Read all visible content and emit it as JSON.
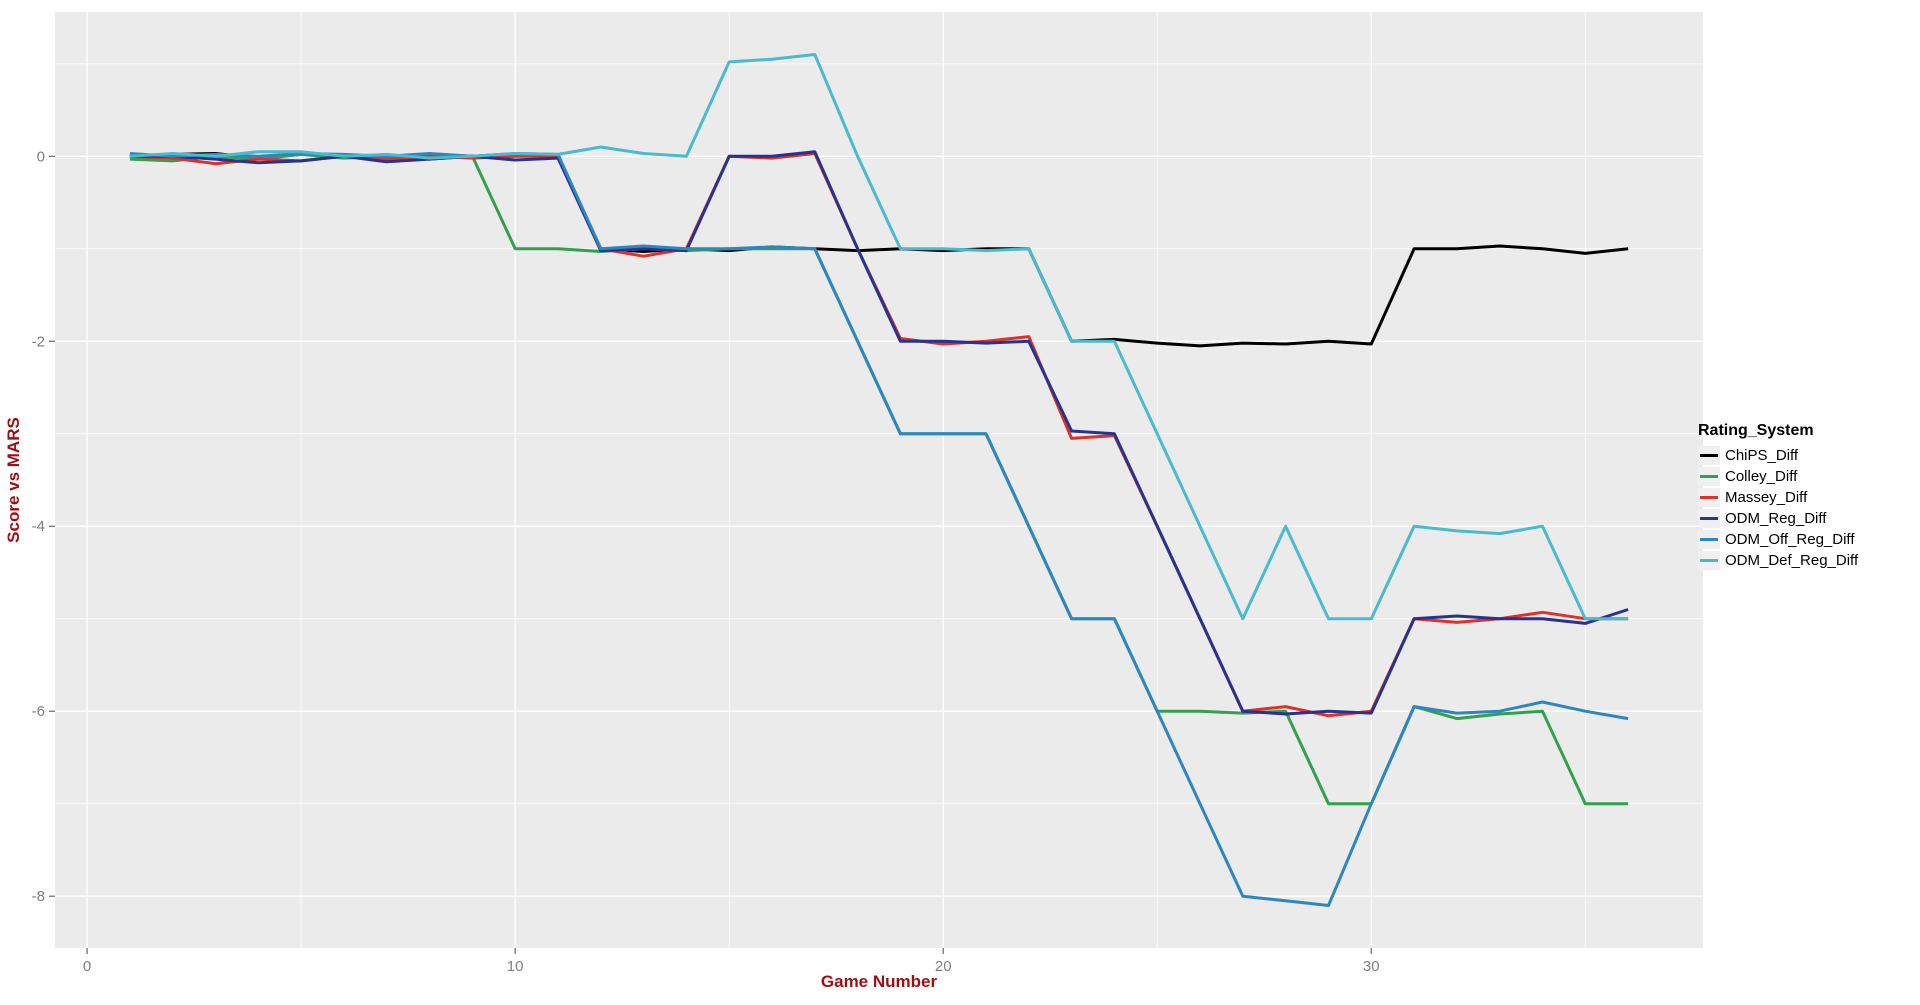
{
  "chart_data": {
    "type": "line",
    "title": "",
    "xlabel": "Game Number",
    "ylabel": "Score vs MARS",
    "legend_title": "Rating_System",
    "legend_position": "right",
    "grid": true,
    "xlim": [
      -0.75,
      37.75
    ],
    "ylim": [
      -8.56,
      1.56
    ],
    "x_ticks_major": [
      0,
      10,
      20,
      30
    ],
    "x_ticks_minor": [
      5,
      15,
      25,
      35
    ],
    "y_ticks_major": [
      0,
      -2,
      -4,
      -6,
      -8
    ],
    "y_ticks_minor": [
      1,
      -1,
      -3,
      -5,
      -7
    ],
    "x": [
      1,
      2,
      3,
      4,
      5,
      6,
      7,
      8,
      9,
      10,
      11,
      12,
      13,
      14,
      15,
      16,
      17,
      18,
      19,
      20,
      21,
      22,
      23,
      24,
      25,
      26,
      27,
      28,
      29,
      30,
      31,
      32,
      33,
      34,
      35,
      36
    ],
    "series": [
      {
        "name": "ChiPS_Diff",
        "color": "#000000",
        "values": [
          0,
          0.02,
          0.03,
          -0.02,
          0.02,
          0,
          -0.03,
          0.02,
          0,
          0.02,
          0,
          -1,
          -1.03,
          -1,
          -1.02,
          -0.98,
          -1,
          -1.02,
          -1,
          -1.02,
          -1,
          -1,
          -2,
          -1.98,
          -2.02,
          -2.05,
          -2.02,
          -2.03,
          -2,
          -2.03,
          -1,
          -1,
          -0.97,
          -1,
          -1.05,
          -1
        ]
      },
      {
        "name": "Colley_Diff",
        "color": "#31A14F",
        "values": [
          -0.03,
          -0.05,
          0,
          -0.03,
          0.02,
          -0.02,
          0,
          -0.03,
          0,
          -1,
          -1,
          -1.03,
          -1,
          -1.02,
          -1,
          -1,
          -1,
          -2,
          -3,
          -3,
          -3,
          -4,
          -5,
          -5,
          -6,
          -6,
          -6.02,
          -6,
          -7,
          -7,
          -5.95,
          -6.08,
          -6.03,
          -6,
          -7,
          -7
        ]
      },
      {
        "name": "Massey_Diff",
        "color": "#DC3227",
        "values": [
          0,
          -0.02,
          -0.08,
          -0.03,
          -0.05,
          0,
          -0.03,
          0,
          -0.02,
          0,
          0,
          -1,
          -1.08,
          -1,
          0,
          -0.02,
          0.03,
          -1,
          -1.97,
          -2.03,
          -2,
          -1.95,
          -3.05,
          -3.02,
          -4,
          -5,
          -6,
          -5.95,
          -6.05,
          -6,
          -5,
          -5.04,
          -5,
          -4.93,
          -5,
          -5
        ]
      },
      {
        "name": "ODM_Reg_Diff",
        "color": "#28328F",
        "values": [
          0,
          0,
          -0.03,
          -0.07,
          -0.05,
          0,
          -0.06,
          -0.03,
          0,
          -0.04,
          -0.02,
          -1.02,
          -1,
          -1.02,
          0,
          0,
          0.05,
          -1,
          -2,
          -2,
          -2.02,
          -2,
          -2.97,
          -3,
          -4,
          -5,
          -6,
          -6.03,
          -6,
          -6.02,
          -5,
          -4.97,
          -5,
          -5,
          -5.05,
          -4.9
        ]
      },
      {
        "name": "ODM_Off_Reg_Diff",
        "color": "#2E86C0",
        "values": [
          0.03,
          0,
          0.02,
          0,
          0.03,
          0.02,
          0,
          0.03,
          0,
          0.03,
          0.02,
          -1,
          -0.97,
          -1,
          -1,
          -0.98,
          -1,
          -2,
          -3,
          -3,
          -3,
          -4,
          -5,
          -5,
          -6,
          -7,
          -8,
          -8.05,
          -8.1,
          -7,
          -5.95,
          -6.02,
          -6,
          -5.9,
          -6,
          -6.08
        ]
      },
      {
        "name": "ODM_Def_Reg_Diff",
        "color": "#4ABACD",
        "values": [
          0,
          0.03,
          0,
          0.05,
          0.05,
          0,
          0.02,
          -0.02,
          0,
          0.03,
          0.02,
          0.1,
          0.03,
          0,
          1.02,
          1.05,
          1.1,
          0,
          -1,
          -1,
          -1.02,
          -1,
          -2,
          -2,
          -3,
          -4,
          -5,
          -4,
          -5,
          -5,
          -4,
          -4.05,
          -4.08,
          -4,
          -5,
          -5
        ]
      }
    ]
  },
  "colors": {
    "panel_bg": "#EBEBEB",
    "grid_major": "#FFFFFF",
    "grid_minor": "#FFFFFF",
    "tick_mark": "#666666",
    "tick_label": "#7E7E7E",
    "axis_title": "#9B1012",
    "legend_key_bg": "#F0F0F0",
    "outer_bg": "#FFFFFF"
  }
}
